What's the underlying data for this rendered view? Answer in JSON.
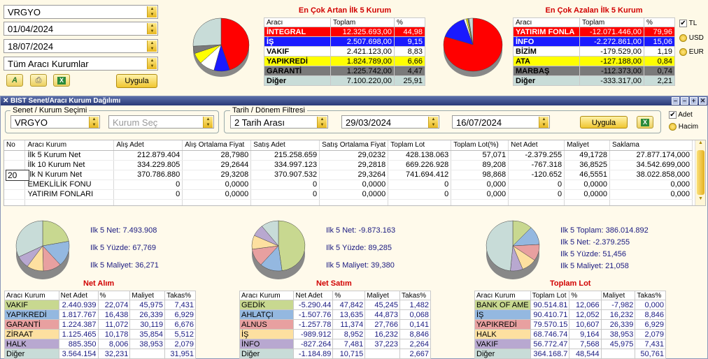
{
  "filters": {
    "symbol": "VRGYO",
    "date_start": "01/04/2024",
    "date_end": "18/07/2024",
    "broker_scope": "Tüm Aracı Kurumlar",
    "apply_label": "Uygula"
  },
  "currency": {
    "options": [
      "TL",
      "USD",
      "EUR"
    ],
    "selected": "TL"
  },
  "gainers": {
    "title": "En Çok Artan İlk 5 Kurum",
    "headers": [
      "Aracı",
      "Toplam",
      "%"
    ],
    "rows": [
      {
        "name": "İNTEGRAL",
        "total": "12.325.693,00",
        "pct": "44,98",
        "color": "#ff0000",
        "fg": "#ffffff"
      },
      {
        "name": "İŞ",
        "total": "2.507.698,00",
        "pct": "9,15",
        "color": "#1a1aff",
        "fg": "#ffffff"
      },
      {
        "name": "VAKIF",
        "total": "2.421.123,00",
        "pct": "8,83",
        "color": "#ffffff",
        "fg": "#000000"
      },
      {
        "name": "YAPIKREDİ",
        "total": "1.824.789,00",
        "pct": "6,66",
        "color": "#ffff00",
        "fg": "#000000"
      },
      {
        "name": "GARANTİ",
        "total": "1.225.742,00",
        "pct": "4,47",
        "color": "#7a7a7a",
        "fg": "#000000"
      },
      {
        "name": "Diğer",
        "total": "7.100.220,00",
        "pct": "25,91",
        "color": "#c8dcd8",
        "fg": "#000000"
      }
    ]
  },
  "losers": {
    "title": "En Çok Azalan İlk 5 Kurum",
    "headers": [
      "Aracı",
      "Toplam",
      "%"
    ],
    "rows": [
      {
        "name": "YATIRIM FONLA",
        "total": "-12.071.446,00",
        "pct": "79,96",
        "color": "#ff0000",
        "fg": "#ffffff"
      },
      {
        "name": "İNFO",
        "total": "-2.272.861,00",
        "pct": "15,06",
        "color": "#1a1aff",
        "fg": "#ffffff"
      },
      {
        "name": "BİZİM",
        "total": "-179.529,00",
        "pct": "1,19",
        "color": "#ffffff",
        "fg": "#000000"
      },
      {
        "name": "ATA",
        "total": "-127.188,00",
        "pct": "0,84",
        "color": "#ffff00",
        "fg": "#000000"
      },
      {
        "name": "MARBAŞ",
        "total": "-112.373,00",
        "pct": "0,74",
        "color": "#7a7a7a",
        "fg": "#000000"
      },
      {
        "name": "Diğer",
        "total": "-333.317,00",
        "pct": "2,21",
        "color": "#c8dcd8",
        "fg": "#000000"
      }
    ]
  },
  "window": {
    "title": "BIST Senet/Aracı Kurum Dağılımı",
    "selection_legend": "Senet / Kurum Seçimi",
    "symbol": "VRGYO",
    "broker_placeholder": "Kurum Seç",
    "date_legend": "Tarih / Dönem Filtresi",
    "mode": "2 Tarih Arası",
    "date_start": "29/03/2024",
    "date_end": "16/07/2024",
    "apply_label": "Uygula",
    "view_options": [
      "Adet",
      "Hacim"
    ],
    "view_selected": "Adet",
    "row_count": "20"
  },
  "grid": {
    "headers": [
      "No",
      "Aracı Kurum",
      "Alış Adet",
      "Alış Ortalama Fiyat",
      "Satış Adet",
      "Satış Ortalama Fiyat",
      "Toplam Lot",
      "Toplam Lot(%)",
      "Net Adet",
      "Maliyet",
      "Saklama"
    ],
    "rows": [
      [
        "",
        "İlk 5 Kurum Net",
        "212.879.404",
        "28,7980",
        "215.258.659",
        "29,0232",
        "428.138.063",
        "57,071",
        "-2.379.255",
        "49,1728",
        "27.877.174,000"
      ],
      [
        "",
        "İlk 10 Kurum Net",
        "334.229.805",
        "29,2644",
        "334.997.123",
        "29,2818",
        "669.226.928",
        "89,208",
        "-767.318",
        "36,8525",
        "34.542.699,000"
      ],
      [
        "",
        "İlk N Kurum Net",
        "370.786.880",
        "29,3208",
        "370.907.532",
        "29,3264",
        "741.694.412",
        "98,868",
        "-120.652",
        "46,5551",
        "38.022.858,000"
      ],
      [
        "",
        "EMEKLİLİK FONU",
        "0",
        "0,0000",
        "0",
        "0,0000",
        "0",
        "0,000",
        "0",
        "0,0000",
        "0,000"
      ],
      [
        "",
        "YATIRIM FONLARI",
        "0",
        "0,0000",
        "0",
        "0,0000",
        "0",
        "0,000",
        "0",
        "0,0000",
        "0,000"
      ]
    ]
  },
  "panels": [
    {
      "title": "Net Alım",
      "stats": [
        "Ilk 5 Net: 7.493.908",
        "Ilk 5 Yüzde: 67,769",
        "Ilk 5 Maliyet: 36,271"
      ],
      "headers": [
        "Aracı Kurum",
        "Net Adet",
        "%",
        "Maliyet",
        "Takas%"
      ],
      "rows": [
        {
          "name": "VAKIF",
          "color": "#c8d890",
          "vals": [
            "2.440.939",
            "22,074",
            "45,975",
            "7,431"
          ]
        },
        {
          "name": "YAPIKREDİ",
          "color": "#94b8e0",
          "vals": [
            "1.817.767",
            "16,438",
            "26,339",
            "6,929"
          ]
        },
        {
          "name": "GARANTİ",
          "color": "#e8a0a0",
          "vals": [
            "1.224.387",
            "11,072",
            "30,119",
            "6,676"
          ]
        },
        {
          "name": "ZİRAAT",
          "color": "#fde0a0",
          "vals": [
            "1.125.465",
            "10,178",
            "35,854",
            "5,512"
          ]
        },
        {
          "name": "HALK",
          "color": "#b8a8d0",
          "vals": [
            "885.350",
            "8,006",
            "38,953",
            "2,079"
          ]
        },
        {
          "name": "Diğer",
          "color": "#c8dcd8",
          "vals": [
            "3.564.154",
            "32,231",
            "",
            "31,951"
          ]
        }
      ]
    },
    {
      "title": "Net Satım",
      "stats": [
        "Ilk 5 Net: -9.873.163",
        "Ilk 5 Yüzde: 89,285",
        "Ilk 5 Maliyet: 39,380"
      ],
      "headers": [
        "Aracı Kurum",
        "Net Adet",
        "%",
        "Maliyet",
        "Takas%"
      ],
      "rows": [
        {
          "name": "GEDİK",
          "color": "#c8d890",
          "vals": [
            "-5.290.44",
            "47,842",
            "45,245",
            "1,482"
          ]
        },
        {
          "name": "AHLATÇI",
          "color": "#94b8e0",
          "vals": [
            "-1.507.76",
            "13,635",
            "44,873",
            "0,068"
          ]
        },
        {
          "name": "ALNUS",
          "color": "#e8a0a0",
          "vals": [
            "-1.257.78",
            "11,374",
            "27,766",
            "0,141"
          ]
        },
        {
          "name": "İŞ",
          "color": "#fde0a0",
          "vals": [
            "-989.912",
            "8,952",
            "16,232",
            "8,846"
          ]
        },
        {
          "name": "İNFO",
          "color": "#b8a8d0",
          "vals": [
            "-827.264",
            "7,481",
            "37,223",
            "2,264"
          ]
        },
        {
          "name": "Diğer",
          "color": "#c8dcd8",
          "vals": [
            "-1.184.89",
            "10,715",
            "",
            "2,667"
          ]
        }
      ]
    },
    {
      "title": "Toplam Lot",
      "stats": [
        "Ilk 5 Toplam: 386.014.892",
        "Ilk 5 Net: -2.379.255",
        "Ilk 5 Yüzde: 51,456",
        "Ilk 5 Maliyet: 21,058"
      ],
      "headers": [
        "Aracı Kurum",
        "Toplam Lot",
        "%",
        "Maliyet",
        "Takas%"
      ],
      "rows": [
        {
          "name": "BANK OF AME",
          "color": "#c8d890",
          "vals": [
            "90.514.81",
            "12,066",
            "-7,982",
            "0,000"
          ]
        },
        {
          "name": "İŞ",
          "color": "#94b8e0",
          "vals": [
            "90.410.71",
            "12,052",
            "16,232",
            "8,846"
          ]
        },
        {
          "name": "YAPIKREDİ",
          "color": "#e8a0a0",
          "vals": [
            "79.570.15",
            "10,607",
            "26,339",
            "6,929"
          ]
        },
        {
          "name": "HALK",
          "color": "#fde0a0",
          "vals": [
            "68.746.74",
            "9,164",
            "38,953",
            "2,079"
          ]
        },
        {
          "name": "VAKIF",
          "color": "#b8a8d0",
          "vals": [
            "56.772.47",
            "7,568",
            "45,975",
            "7,431"
          ]
        },
        {
          "name": "Diğer",
          "color": "#c8dcd8",
          "vals": [
            "364.168.7",
            "48,544",
            "",
            "50,761"
          ]
        }
      ]
    }
  ],
  "pies": {
    "gainers": [
      44.98,
      9.15,
      8.83,
      6.66,
      4.47,
      25.91
    ],
    "losers": [
      79.96,
      15.06,
      1.19,
      0.84,
      0.74,
      2.21
    ],
    "net_buy": [
      22.074,
      16.438,
      11.072,
      10.178,
      8.006,
      32.231
    ],
    "net_sell": [
      47.842,
      13.635,
      11.374,
      8.952,
      7.481,
      10.715
    ],
    "total_lot": [
      12.066,
      12.052,
      10.607,
      9.164,
      7.568,
      48.544
    ]
  }
}
